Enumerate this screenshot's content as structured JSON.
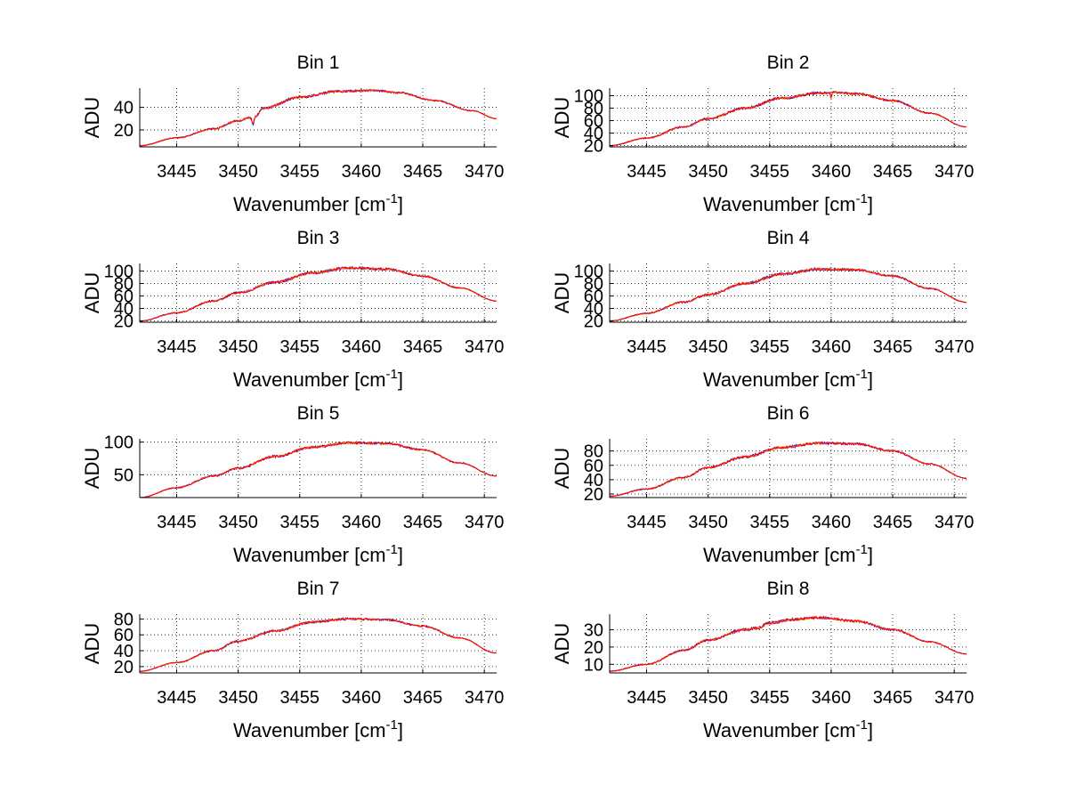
{
  "figure": {
    "background": "#ffffff"
  },
  "colors": {
    "series_blue": "#0000ff",
    "series_orange": "#ff9900",
    "series_red": "#ff0000"
  },
  "chart_data": [
    {
      "type": "line",
      "title": "Bin 1",
      "xlabel": "Wavenumber [cm",
      "xlabel_sup": "-1",
      "xlabel_close": "]",
      "ylabel": "ADU",
      "xlim": [
        3442,
        3471
      ],
      "ylim": [
        5,
        57
      ],
      "xticks": [
        3445,
        3450,
        3455,
        3460,
        3465,
        3470
      ],
      "yticks": [
        20,
        40
      ],
      "x": [
        3442,
        3445,
        3448,
        3450,
        3451,
        3451.2,
        3451.4,
        3452,
        3455,
        3458,
        3461,
        3463,
        3466,
        3469,
        3471
      ],
      "values": [
        6,
        13,
        21,
        28,
        31,
        25,
        32,
        39,
        49,
        54,
        55,
        53,
        46,
        37,
        30
      ],
      "series": [
        {
          "name": "blue",
          "color": "#0000ff",
          "noise": 0.8
        },
        {
          "name": "orange",
          "color": "#ff9900",
          "noise": 0.6
        },
        {
          "name": "red",
          "color": "#ff0000",
          "noise": 0.7
        }
      ]
    },
    {
      "type": "line",
      "title": "Bin 2",
      "xlabel": "Wavenumber [cm",
      "xlabel_sup": "-1",
      "xlabel_close": "]",
      "ylabel": "ADU",
      "xlim": [
        3442,
        3471
      ],
      "ylim": [
        18,
        112
      ],
      "xticks": [
        3445,
        3450,
        3455,
        3460,
        3465,
        3470
      ],
      "yticks": [
        20,
        40,
        60,
        80,
        100
      ],
      "x": [
        3442,
        3445,
        3448,
        3450,
        3453,
        3456,
        3459,
        3459.9,
        3460,
        3460.1,
        3462,
        3465,
        3468,
        3471
      ],
      "values": [
        20,
        32,
        50,
        63,
        80,
        96,
        104,
        105,
        95,
        105,
        103,
        92,
        72,
        50
      ],
      "series": [
        {
          "name": "blue",
          "color": "#0000ff",
          "noise": 1.6
        },
        {
          "name": "orange",
          "color": "#ff9900",
          "noise": 1.2
        },
        {
          "name": "red",
          "color": "#ff0000",
          "noise": 1.4
        }
      ]
    },
    {
      "type": "line",
      "title": "Bin 3",
      "xlabel": "Wavenumber [cm",
      "xlabel_sup": "-1",
      "xlabel_close": "]",
      "ylabel": "ADU",
      "xlim": [
        3442,
        3471
      ],
      "ylim": [
        18,
        112
      ],
      "xticks": [
        3445,
        3450,
        3455,
        3460,
        3465,
        3470
      ],
      "yticks": [
        20,
        40,
        60,
        80,
        100
      ],
      "x": [
        3442,
        3445,
        3448,
        3450,
        3453,
        3456,
        3459,
        3462,
        3465,
        3468,
        3471
      ],
      "values": [
        20,
        33,
        52,
        65,
        82,
        97,
        105,
        103,
        92,
        73,
        52
      ],
      "series": [
        {
          "name": "blue",
          "color": "#0000ff",
          "noise": 1.6
        },
        {
          "name": "orange",
          "color": "#ff9900",
          "noise": 1.2
        },
        {
          "name": "red",
          "color": "#ff0000",
          "noise": 1.4
        }
      ]
    },
    {
      "type": "line",
      "title": "Bin 4",
      "xlabel": "Wavenumber [cm",
      "xlabel_sup": "-1",
      "xlabel_close": "]",
      "ylabel": "ADU",
      "xlim": [
        3442,
        3471
      ],
      "ylim": [
        18,
        112
      ],
      "xticks": [
        3445,
        3450,
        3455,
        3460,
        3465,
        3470
      ],
      "yticks": [
        20,
        40,
        60,
        80,
        100
      ],
      "x": [
        3442,
        3445,
        3448,
        3450,
        3453,
        3456,
        3459,
        3462,
        3465,
        3468,
        3471
      ],
      "values": [
        20,
        32,
        50,
        62,
        80,
        95,
        103,
        102,
        92,
        72,
        50
      ],
      "series": [
        {
          "name": "blue",
          "color": "#0000ff",
          "noise": 1.6
        },
        {
          "name": "orange",
          "color": "#ff9900",
          "noise": 1.2
        },
        {
          "name": "red",
          "color": "#ff0000",
          "noise": 1.4
        }
      ]
    },
    {
      "type": "line",
      "title": "Bin 5",
      "xlabel": "Wavenumber [cm",
      "xlabel_sup": "-1",
      "xlabel_close": "]",
      "ylabel": "ADU",
      "xlim": [
        3442,
        3471
      ],
      "ylim": [
        15,
        105
      ],
      "xticks": [
        3445,
        3450,
        3455,
        3460,
        3465,
        3470
      ],
      "yticks": [
        50,
        100
      ],
      "x": [
        3442,
        3445,
        3448,
        3450,
        3453,
        3456,
        3459,
        3462,
        3465,
        3468,
        3471
      ],
      "values": [
        15,
        30,
        48,
        60,
        78,
        92,
        99,
        98,
        88,
        68,
        48
      ],
      "series": [
        {
          "name": "blue",
          "color": "#0000ff",
          "noise": 1.5
        },
        {
          "name": "orange",
          "color": "#ff9900",
          "noise": 1.1
        },
        {
          "name": "red",
          "color": "#ff0000",
          "noise": 1.3
        }
      ]
    },
    {
      "type": "line",
      "title": "Bin 6",
      "xlabel": "Wavenumber [cm",
      "xlabel_sup": "-1",
      "xlabel_close": "]",
      "ylabel": "ADU",
      "xlim": [
        3442,
        3471
      ],
      "ylim": [
        15,
        97
      ],
      "xticks": [
        3445,
        3450,
        3455,
        3460,
        3465,
        3470
      ],
      "yticks": [
        20,
        40,
        60,
        80
      ],
      "x": [
        3442,
        3445,
        3448,
        3450,
        3453,
        3456,
        3459,
        3462,
        3465,
        3468,
        3471
      ],
      "values": [
        17,
        27,
        43,
        57,
        72,
        85,
        91,
        90,
        80,
        62,
        42
      ],
      "series": [
        {
          "name": "blue",
          "color": "#0000ff",
          "noise": 1.4
        },
        {
          "name": "orange",
          "color": "#ff9900",
          "noise": 1.0
        },
        {
          "name": "red",
          "color": "#ff0000",
          "noise": 1.2
        }
      ]
    },
    {
      "type": "line",
      "title": "Bin 7",
      "xlabel": "Wavenumber [cm",
      "xlabel_sup": "-1",
      "xlabel_close": "]",
      "ylabel": "ADU",
      "xlim": [
        3442,
        3471
      ],
      "ylim": [
        12,
        86
      ],
      "xticks": [
        3445,
        3450,
        3455,
        3460,
        3465,
        3470
      ],
      "yticks": [
        20,
        40,
        60,
        80
      ],
      "x": [
        3442,
        3445,
        3448,
        3450,
        3453,
        3456,
        3459,
        3462,
        3465,
        3468,
        3471
      ],
      "values": [
        14,
        25,
        40,
        52,
        65,
        76,
        80,
        79,
        71,
        56,
        37
      ],
      "series": [
        {
          "name": "blue",
          "color": "#0000ff",
          "noise": 1.1
        },
        {
          "name": "orange",
          "color": "#ff9900",
          "noise": 0.8
        },
        {
          "name": "red",
          "color": "#ff0000",
          "noise": 1.0
        }
      ]
    },
    {
      "type": "line",
      "title": "Bin 8",
      "xlabel": "Wavenumber [cm",
      "xlabel_sup": "-1",
      "xlabel_close": "]",
      "ylabel": "ADU",
      "xlim": [
        3442,
        3471
      ],
      "ylim": [
        5,
        39
      ],
      "xticks": [
        3445,
        3450,
        3455,
        3460,
        3465,
        3470
      ],
      "yticks": [
        10,
        20,
        30
      ],
      "x": [
        3442,
        3445,
        3448,
        3450,
        3453,
        3454,
        3455,
        3457,
        3459,
        3462,
        3465,
        3468,
        3471
      ],
      "values": [
        6,
        10,
        18,
        24,
        30,
        31,
        34,
        36,
        37,
        35,
        30,
        23,
        16
      ],
      "series": [
        {
          "name": "blue",
          "color": "#0000ff",
          "noise": 0.6
        },
        {
          "name": "orange",
          "color": "#ff9900",
          "noise": 0.45
        },
        {
          "name": "red",
          "color": "#ff0000",
          "noise": 0.55
        }
      ]
    }
  ]
}
